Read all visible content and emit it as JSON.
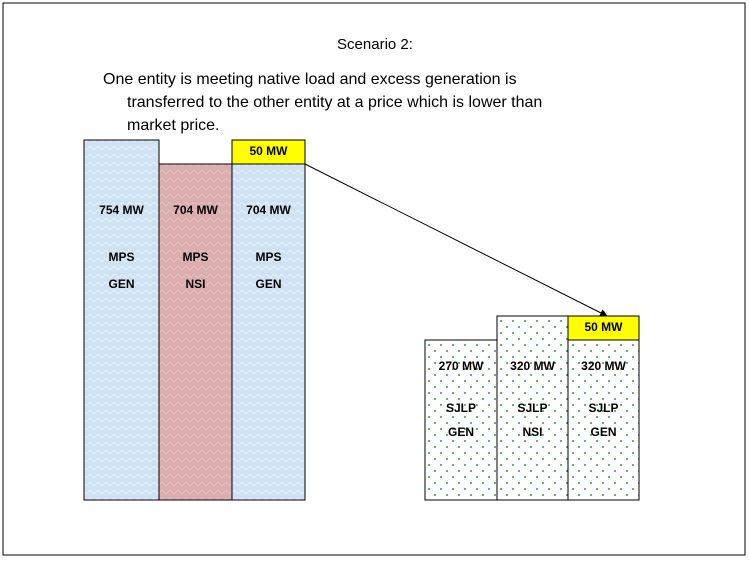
{
  "title": "Scenario 2:",
  "description": [
    "One entity is meeting native load and excess generation is",
    "transferred to the other entity at a price which is lower than",
    "market price."
  ],
  "left_group": {
    "transfer": "50 MW",
    "bars": [
      {
        "amount": "754 MW",
        "entity": "MPS",
        "kind": "GEN"
      },
      {
        "amount": "704 MW",
        "entity": "MPS",
        "kind": "NSI"
      },
      {
        "amount": "704 MW",
        "entity": "MPS",
        "kind": "GEN"
      }
    ]
  },
  "right_group": {
    "transfer": "50 MW",
    "bars": [
      {
        "amount": "270 MW",
        "entity": "SJLP",
        "kind": "GEN"
      },
      {
        "amount": "320 MW",
        "entity": "SJLP",
        "kind": "NSI"
      },
      {
        "amount": "320 MW",
        "entity": "SJLP",
        "kind": "GEN"
      }
    ]
  }
}
